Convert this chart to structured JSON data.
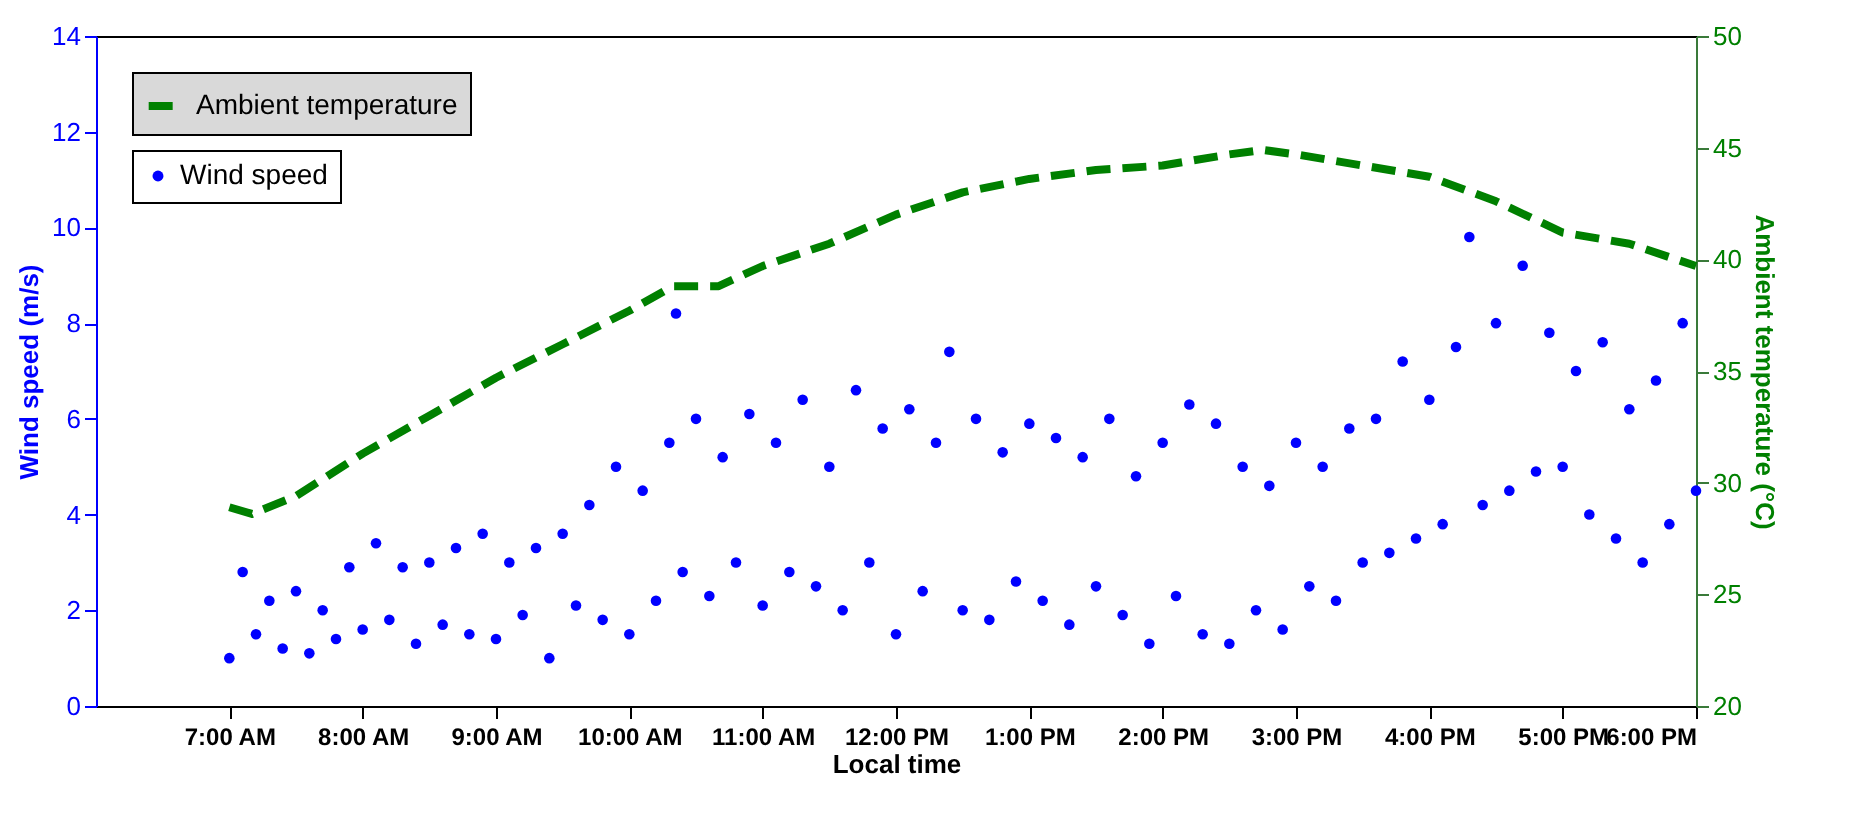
{
  "chart_data": {
    "type": "scatter",
    "xlabel": "Local time",
    "ylabel": "Wind speed (m/s)",
    "y2label": "Ambient temperature (°C)",
    "xlim": [
      6,
      18
    ],
    "xticks": [
      {
        "value": 7,
        "label": "7:00 AM"
      },
      {
        "value": 8,
        "label": "8:00 AM"
      },
      {
        "value": 9,
        "label": "9:00 AM"
      },
      {
        "value": 10,
        "label": "10:00 AM"
      },
      {
        "value": 11,
        "label": "11:00 AM"
      },
      {
        "value": 12,
        "label": "12:00 PM"
      },
      {
        "value": 13,
        "label": "1:00 PM"
      },
      {
        "value": 14,
        "label": "2:00 PM"
      },
      {
        "value": 15,
        "label": "3:00 PM"
      },
      {
        "value": 16,
        "label": "4:00 PM"
      },
      {
        "value": 17,
        "label": "5:00 PM"
      },
      {
        "value": 18,
        "label": "6:00 PM"
      }
    ],
    "ylim": [
      0,
      14
    ],
    "yticks": [
      0,
      2,
      4,
      6,
      8,
      10,
      12,
      14
    ],
    "y2lim": [
      20,
      50
    ],
    "y2ticks": [
      20,
      25,
      30,
      35,
      40,
      45,
      50
    ],
    "legend": "top left",
    "grid": false,
    "line_style": "dashed",
    "series": [
      {
        "name": "Ambient temperature",
        "type": "line",
        "axis": "y2",
        "marker": "none",
        "color": "#008000",
        "x": [
          7,
          7.17,
          7.5,
          8,
          8.5,
          9,
          9.5,
          10,
          10.33,
          10.67,
          11,
          11.5,
          12,
          12.5,
          13,
          13.5,
          14,
          14.5,
          14.75,
          15,
          15.5,
          16,
          16.5,
          17,
          17.5,
          18
        ],
        "values": [
          28.9,
          28.6,
          29.4,
          31.3,
          33,
          34.7,
          36.2,
          37.7,
          38.8,
          38.8,
          39.7,
          40.7,
          42,
          43,
          43.6,
          44,
          44.2,
          44.7,
          44.9,
          44.7,
          44.2,
          43.7,
          42.6,
          41.2,
          40.7,
          39.7
        ]
      },
      {
        "name": "Wind speed",
        "marker": "circle",
        "color": "#0000ff",
        "x": [
          7,
          7.1,
          7.2,
          7.3,
          7.4,
          7.5,
          7.6,
          7.7,
          7.8,
          7.9,
          8,
          8.1,
          8.2,
          8.3,
          8.4,
          8.5,
          8.6,
          8.7,
          8.8,
          8.9,
          9,
          9.1,
          9.2,
          9.3,
          9.4,
          9.5,
          9.6,
          9.7,
          9.8,
          9.9,
          10,
          10.1,
          10.2,
          10.3,
          10.35,
          10.4,
          10.5,
          10.6,
          10.7,
          10.8,
          10.9,
          11,
          11.1,
          11.2,
          11.3,
          11.4,
          11.5,
          11.6,
          11.7,
          11.8,
          11.9,
          12,
          12.1,
          12.2,
          12.3,
          12.4,
          12.5,
          12.6,
          12.7,
          12.8,
          12.9,
          13,
          13.1,
          13.2,
          13.3,
          13.4,
          13.5,
          13.6,
          13.7,
          13.8,
          13.9,
          14,
          14.1,
          14.2,
          14.3,
          14.4,
          14.5,
          14.6,
          14.7,
          14.8,
          14.9,
          15,
          15.1,
          15.2,
          15.3,
          15.4,
          15.5,
          15.6,
          15.7,
          15.8,
          15.9,
          16,
          16.1,
          16.2,
          16.3,
          16.4,
          16.5,
          16.6,
          16.7,
          16.8,
          16.9,
          17,
          17.1,
          17.2,
          17.3,
          17.4,
          17.5,
          17.6,
          17.7,
          17.8,
          17.9,
          18
        ],
        "values": [
          1,
          2.8,
          1.5,
          2.2,
          1.2,
          2.4,
          1.1,
          2,
          1.4,
          2.9,
          1.6,
          3.4,
          1.8,
          2.9,
          1.3,
          3,
          1.7,
          3.3,
          1.5,
          3.6,
          1.4,
          3,
          1.9,
          3.3,
          1,
          3.6,
          2.1,
          4.2,
          1.8,
          5,
          1.5,
          4.5,
          2.2,
          5.5,
          8.2,
          2.8,
          6,
          2.3,
          5.2,
          3,
          6.1,
          2.1,
          5.5,
          2.8,
          6.4,
          2.5,
          5,
          2,
          6.6,
          3,
          5.8,
          1.5,
          6.2,
          2.4,
          5.5,
          7.4,
          2,
          6,
          1.8,
          5.3,
          2.6,
          5.9,
          2.2,
          5.6,
          1.7,
          5.2,
          2.5,
          6,
          1.9,
          4.8,
          1.3,
          5.5,
          2.3,
          6.3,
          1.5,
          5.9,
          1.3,
          5,
          2,
          4.6,
          1.6,
          5.5,
          2.5,
          5,
          2.2,
          5.8,
          3,
          6,
          3.2,
          7.2,
          3.5,
          6.4,
          3.8,
          7.5,
          9.8,
          4.2,
          8,
          4.5,
          9.2,
          4.9,
          7.8,
          5,
          7,
          4,
          7.6,
          3.5,
          6.2,
          3,
          6.8,
          3.8,
          8,
          4.5
        ]
      }
    ]
  }
}
